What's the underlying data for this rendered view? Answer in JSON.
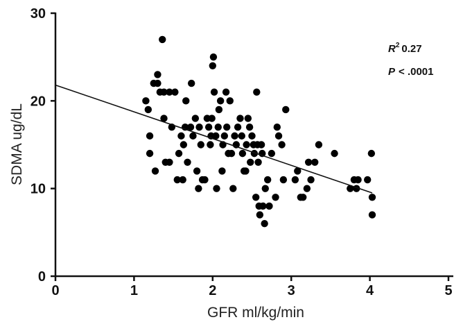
{
  "chart_data": {
    "type": "scatter",
    "title": "",
    "xlabel": "GFR ml/kg/min",
    "ylabel": "SDMA ug/dL",
    "xlim": [
      0,
      5
    ],
    "ylim": [
      0,
      30
    ],
    "x_ticks": [
      "0",
      "1",
      "2",
      "3",
      "4",
      "5"
    ],
    "y_ticks": [
      "0",
      "10",
      "20",
      "30"
    ],
    "grid": false,
    "legend": "none",
    "point_color": "#000000",
    "regression_line": {
      "x": [
        0,
        4.03
      ],
      "y": [
        21.8,
        9.5
      ]
    },
    "annotations": {
      "r2_symbol": "R",
      "r2_exponent": "2",
      "r2_value": "0.27",
      "p_symbol": "P",
      "p_value": "< .0001"
    },
    "points": [
      {
        "x": 1.15,
        "y": 20
      },
      {
        "x": 1.18,
        "y": 19
      },
      {
        "x": 1.2,
        "y": 16
      },
      {
        "x": 1.2,
        "y": 14
      },
      {
        "x": 1.25,
        "y": 22
      },
      {
        "x": 1.27,
        "y": 12
      },
      {
        "x": 1.3,
        "y": 23
      },
      {
        "x": 1.3,
        "y": 22
      },
      {
        "x": 1.33,
        "y": 21
      },
      {
        "x": 1.36,
        "y": 27
      },
      {
        "x": 1.38,
        "y": 21
      },
      {
        "x": 1.38,
        "y": 18
      },
      {
        "x": 1.4,
        "y": 13
      },
      {
        "x": 1.45,
        "y": 13
      },
      {
        "x": 1.45,
        "y": 21
      },
      {
        "x": 1.48,
        "y": 17
      },
      {
        "x": 1.52,
        "y": 21
      },
      {
        "x": 1.55,
        "y": 11
      },
      {
        "x": 1.57,
        "y": 14
      },
      {
        "x": 1.6,
        "y": 16
      },
      {
        "x": 1.62,
        "y": 11
      },
      {
        "x": 1.63,
        "y": 15
      },
      {
        "x": 1.65,
        "y": 17
      },
      {
        "x": 1.66,
        "y": 20
      },
      {
        "x": 1.68,
        "y": 13
      },
      {
        "x": 1.72,
        "y": 17
      },
      {
        "x": 1.73,
        "y": 22
      },
      {
        "x": 1.75,
        "y": 16
      },
      {
        "x": 1.78,
        "y": 18
      },
      {
        "x": 1.8,
        "y": 12
      },
      {
        "x": 1.82,
        "y": 10
      },
      {
        "x": 1.83,
        "y": 17
      },
      {
        "x": 1.85,
        "y": 15
      },
      {
        "x": 1.87,
        "y": 11
      },
      {
        "x": 1.9,
        "y": 11
      },
      {
        "x": 1.93,
        "y": 18
      },
      {
        "x": 1.95,
        "y": 17
      },
      {
        "x": 1.97,
        "y": 15
      },
      {
        "x": 1.98,
        "y": 16
      },
      {
        "x": 1.99,
        "y": 18
      },
      {
        "x": 2.0,
        "y": 24
      },
      {
        "x": 2.01,
        "y": 25
      },
      {
        "x": 2.02,
        "y": 21
      },
      {
        "x": 2.04,
        "y": 16
      },
      {
        "x": 2.05,
        "y": 10
      },
      {
        "x": 2.07,
        "y": 17
      },
      {
        "x": 2.08,
        "y": 19
      },
      {
        "x": 2.1,
        "y": 20
      },
      {
        "x": 2.12,
        "y": 12
      },
      {
        "x": 2.13,
        "y": 15
      },
      {
        "x": 2.15,
        "y": 16
      },
      {
        "x": 2.17,
        "y": 21
      },
      {
        "x": 2.18,
        "y": 17
      },
      {
        "x": 2.2,
        "y": 14
      },
      {
        "x": 2.22,
        "y": 20
      },
      {
        "x": 2.24,
        "y": 14
      },
      {
        "x": 2.26,
        "y": 10
      },
      {
        "x": 2.28,
        "y": 16
      },
      {
        "x": 2.3,
        "y": 15
      },
      {
        "x": 2.32,
        "y": 17
      },
      {
        "x": 2.35,
        "y": 18
      },
      {
        "x": 2.37,
        "y": 16
      },
      {
        "x": 2.38,
        "y": 14
      },
      {
        "x": 2.4,
        "y": 12
      },
      {
        "x": 2.42,
        "y": 12
      },
      {
        "x": 2.43,
        "y": 15
      },
      {
        "x": 2.45,
        "y": 18
      },
      {
        "x": 2.47,
        "y": 17
      },
      {
        "x": 2.48,
        "y": 13
      },
      {
        "x": 2.5,
        "y": 16
      },
      {
        "x": 2.52,
        "y": 15
      },
      {
        "x": 2.53,
        "y": 14
      },
      {
        "x": 2.55,
        "y": 9
      },
      {
        "x": 2.56,
        "y": 21
      },
      {
        "x": 2.57,
        "y": 15
      },
      {
        "x": 2.58,
        "y": 13
      },
      {
        "x": 2.59,
        "y": 8
      },
      {
        "x": 2.6,
        "y": 7
      },
      {
        "x": 2.62,
        "y": 15
      },
      {
        "x": 2.63,
        "y": 14
      },
      {
        "x": 2.64,
        "y": 8
      },
      {
        "x": 2.66,
        "y": 6
      },
      {
        "x": 2.67,
        "y": 10
      },
      {
        "x": 2.7,
        "y": 11
      },
      {
        "x": 2.72,
        "y": 8
      },
      {
        "x": 2.75,
        "y": 14
      },
      {
        "x": 2.8,
        "y": 9
      },
      {
        "x": 2.82,
        "y": 17
      },
      {
        "x": 2.84,
        "y": 16
      },
      {
        "x": 2.88,
        "y": 15
      },
      {
        "x": 2.9,
        "y": 11
      },
      {
        "x": 2.93,
        "y": 19
      },
      {
        "x": 3.05,
        "y": 11
      },
      {
        "x": 3.08,
        "y": 12
      },
      {
        "x": 3.12,
        "y": 9
      },
      {
        "x": 3.15,
        "y": 9
      },
      {
        "x": 3.2,
        "y": 10
      },
      {
        "x": 3.22,
        "y": 13
      },
      {
        "x": 3.25,
        "y": 11
      },
      {
        "x": 3.3,
        "y": 13
      },
      {
        "x": 3.35,
        "y": 15
      },
      {
        "x": 3.55,
        "y": 14
      },
      {
        "x": 3.75,
        "y": 10
      },
      {
        "x": 3.8,
        "y": 11
      },
      {
        "x": 3.83,
        "y": 10
      },
      {
        "x": 3.85,
        "y": 11
      },
      {
        "x": 3.97,
        "y": 11
      },
      {
        "x": 4.02,
        "y": 14
      },
      {
        "x": 4.03,
        "y": 9
      },
      {
        "x": 4.03,
        "y": 7
      }
    ]
  }
}
